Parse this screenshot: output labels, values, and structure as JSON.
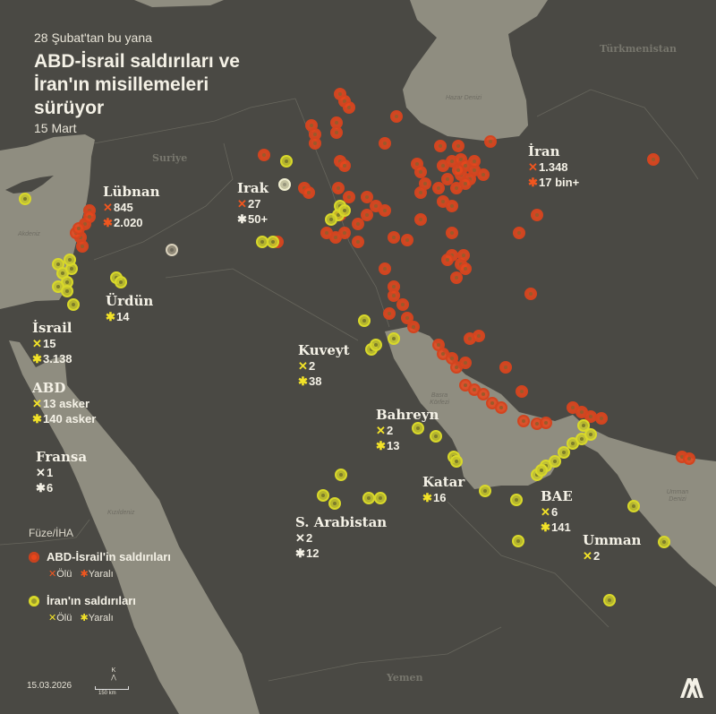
{
  "header": {
    "subtitle": "28 Şubat'tan bu yana",
    "title": "ABD-İsrail saldırıları ve İran'ın misillemeleri sürüyor",
    "date": "15 Mart"
  },
  "colors": {
    "land": "#4a4944",
    "water": "#8f8d80",
    "us_israel_strikes": "#e8461c",
    "iran_strikes": "#d8d82a",
    "text": "#f4f1e6"
  },
  "map_labels": {
    "countries_muted": [
      "Suriye",
      "Türkmenistan",
      "Yemen"
    ],
    "seas": [
      "Akdeniz",
      "Hazar Denizi",
      "Basra Körfezi",
      "Kızıldeniz",
      "Umman Denizi"
    ]
  },
  "countries": [
    {
      "name": "Lübnan",
      "killed": "845",
      "wounded": "2.020",
      "killed_icon": "x-orange",
      "wounded_icon": "asterisk-orange"
    },
    {
      "name": "Irak",
      "killed": "27",
      "wounded": "50+",
      "killed_icon": "x-orange",
      "wounded_icon": "asterisk-white"
    },
    {
      "name": "İran",
      "killed": "1.348",
      "wounded": "17 bin+",
      "killed_icon": "x-orange",
      "wounded_icon": "asterisk-orange"
    },
    {
      "name": "Ürdün",
      "wounded": "14",
      "wounded_icon": "asterisk-yellow"
    },
    {
      "name": "İsrail",
      "killed": "15",
      "wounded": "3.138",
      "killed_icon": "x-yellow",
      "wounded_icon": "asterisk-yellow"
    },
    {
      "name": "ABD",
      "killed": "13 asker",
      "wounded": "140 asker",
      "killed_icon": "x-yellow",
      "wounded_icon": "asterisk-yellow"
    },
    {
      "name": "Fransa",
      "killed": "1",
      "wounded": "6",
      "killed_icon": "x-white",
      "wounded_icon": "asterisk-white"
    },
    {
      "name": "Kuveyt",
      "killed": "2",
      "wounded": "38",
      "killed_icon": "x-yellow",
      "wounded_icon": "asterisk-yellow"
    },
    {
      "name": "Bahreyn",
      "killed": "2",
      "wounded": "13",
      "killed_icon": "x-yellow",
      "wounded_icon": "asterisk-yellow"
    },
    {
      "name": "Katar",
      "wounded": "16",
      "wounded_icon": "asterisk-yellow"
    },
    {
      "name": "S. Arabistan",
      "killed": "2",
      "wounded": "12",
      "killed_icon": "x-white",
      "wounded_icon": "asterisk-white"
    },
    {
      "name": "BAE",
      "killed": "6",
      "wounded": "141",
      "killed_icon": "x-yellow",
      "wounded_icon": "asterisk-yellow"
    },
    {
      "name": "Umman",
      "killed": "2",
      "killed_icon": "x-yellow"
    }
  ],
  "legend": {
    "heading": "Füze/İHA",
    "items": [
      {
        "label": "ABD-İsrail'in saldırıları",
        "killed": "Ölü",
        "wounded": "Yaralı",
        "color": "#e8461c"
      },
      {
        "label": "İran'ın saldırıları",
        "killed": "Ölü",
        "wounded": "Yaralı",
        "color": "#d8d82a"
      }
    ]
  },
  "footer": {
    "date": "15.03.2026",
    "north": "K",
    "scale": "150 km",
    "logo": "AA"
  }
}
